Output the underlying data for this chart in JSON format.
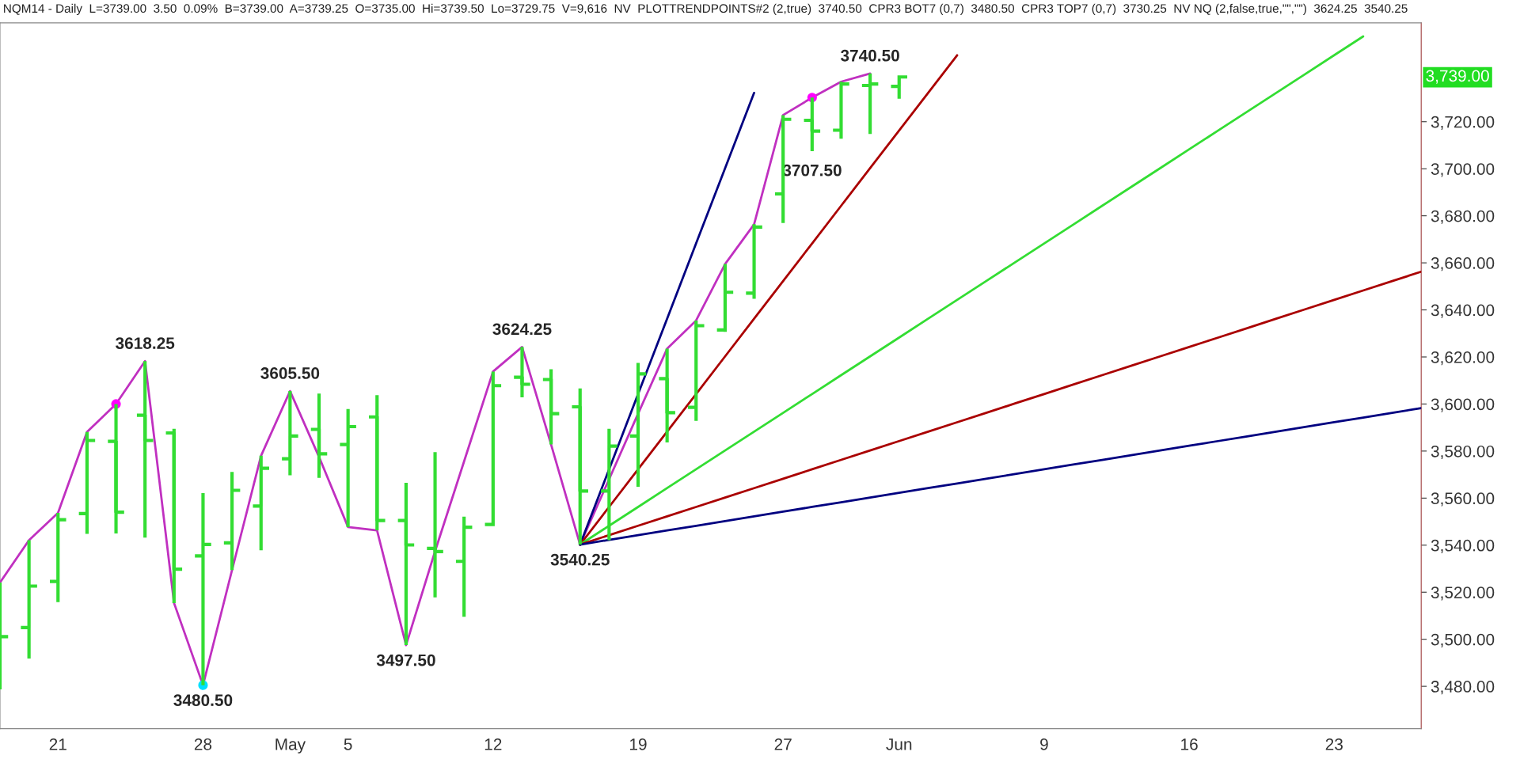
{
  "chart_data": {
    "type": "candlestick",
    "annotations": [
      "NQM14 - Daily  L=3739.00  3.50  0.09%  B=3739.00  A=3739.25  O=3735.00  Hi=3739.50  Lo=3729.75  V=9,616  NV  PLOTTRENDPOINTS#2 (2,true)  3740.50  CPR3 BOT7 (0,7)  3480.50  CPR3 TOP7 (0,7)  3730.25  NV NQ (2,false,true,\"\",\"\")  3624.25  3540.25",
      "3707.50",
      "3,739.00"
    ],
    "categories": [
      null,
      null,
      "21",
      null,
      null,
      null,
      null,
      "28",
      null,
      null,
      "May",
      null,
      "5",
      null,
      null,
      null,
      null,
      "12",
      null,
      null,
      null,
      null,
      "19",
      null,
      null,
      null,
      null,
      "27",
      null,
      null,
      null,
      "Jun",
      null,
      null,
      null,
      null,
      "9",
      null,
      null,
      null,
      null,
      "16",
      null,
      null,
      null,
      null,
      "23",
      null,
      null,
      null
    ],
    "color": "#33dd33",
    "ohlc": [
      [
        3497.4,
        3524.1,
        3478.7,
        3501.1
      ],
      [
        3505.0,
        3542.1,
        3491.8,
        3522.6
      ],
      [
        3524.6,
        3553.7,
        3515.8,
        3550.8
      ],
      [
        3553.4,
        3588.1,
        3544.8,
        3584.5
      ],
      [
        3584.1,
        3600.0,
        3545.0,
        3554.0
      ],
      [
        3595.2,
        3618.25,
        3543.2,
        3584.5
      ],
      [
        3587.7,
        3589.5,
        3515.4,
        3529.8
      ],
      [
        3535.4,
        3562.1,
        3480.5,
        3540.3
      ],
      [
        3541.0,
        3571.1,
        3529.4,
        3563.3
      ],
      [
        3556.6,
        3578.0,
        3537.8,
        3572.7
      ],
      [
        3576.7,
        3605.5,
        3569.7,
        3586.4
      ],
      [
        3589.2,
        3604.4,
        3568.6,
        3578.8
      ],
      [
        3582.8,
        3597.9,
        3547.7,
        3590.4
      ],
      [
        3594.5,
        3603.8,
        3546.3,
        3550.5
      ],
      [
        3550.5,
        3566.5,
        3497.5,
        3540.1
      ],
      [
        3538.6,
        3579.5,
        3517.8,
        3537.3
      ],
      [
        3533.1,
        3552.1,
        3509.6,
        3547.6
      ],
      [
        3548.8,
        3613.8,
        3548.1,
        3607.8
      ],
      [
        3611.4,
        3624.25,
        3602.8,
        3608.4
      ],
      [
        3610.4,
        3614.8,
        3582.8,
        3595.9
      ],
      [
        3598.8,
        3606.6,
        3540.25,
        3563.0
      ],
      [
        3563.0,
        3589.5,
        3542.1,
        3582.1
      ],
      [
        3586.4,
        3617.5,
        3564.8,
        3612.8
      ],
      [
        3610.8,
        3623.5,
        3583.7,
        3596.3
      ],
      [
        3598.6,
        3635.5,
        3592.8,
        3633.3
      ],
      [
        3631.5,
        3659.5,
        3630.7,
        3647.5
      ],
      [
        3647.1,
        3676.4,
        3644.7,
        3675.2
      ],
      [
        3689.3,
        3722.8,
        3676.9,
        3721.0
      ],
      [
        3720.6,
        3730.25,
        3707.5,
        3716.0
      ],
      [
        3716.4,
        3737.0,
        3712.8,
        3736.0
      ],
      [
        3735.4,
        3740.5,
        3714.8,
        3736.0
      ],
      [
        3735.0,
        3739.5,
        3729.75,
        3739.0
      ],
      null,
      null,
      null,
      null,
      null,
      null,
      null,
      null,
      null,
      null,
      null,
      null,
      null,
      null,
      null,
      null,
      null,
      null
    ],
    "series": [
      {
        "type": "line",
        "color": "#c030c0",
        "values": [
          3524.1,
          3542.1,
          3553.7,
          3588.1,
          3600.0,
          3618.25,
          3515.4,
          3480.5,
          3529.4,
          3578.0,
          3605.5,
          3577.5,
          3547.7,
          3546.3,
          3497.5,
          3537.4,
          3575.6,
          3613.8,
          3624.25,
          3582.8,
          3540.25,
          3568.0,
          3595.9,
          3623.5,
          3635.5,
          3659.5,
          3676.4,
          3722.8,
          3730.25,
          3737.0,
          3740.5,
          null,
          null,
          null,
          null,
          null,
          null,
          null,
          null,
          null,
          null,
          null,
          null,
          null,
          null,
          null,
          null,
          null,
          null,
          null
        ],
        "value_labels": [
          null,
          null,
          null,
          null,
          null,
          "3618.25",
          null,
          "3480.50",
          null,
          null,
          "3605.50",
          null,
          null,
          null,
          "3497.50",
          null,
          null,
          null,
          "3624.25",
          null,
          "3540.25",
          null,
          null,
          null,
          null,
          null,
          null,
          null,
          null,
          null,
          "3740.50",
          null,
          null,
          null,
          null,
          null,
          null,
          null,
          null,
          null,
          null,
          null,
          null,
          null,
          null,
          null,
          null,
          null,
          null,
          null
        ]
      },
      {
        "type": "scatter",
        "color": "#ff00ff",
        "marker": "circle",
        "values": [
          null,
          null,
          null,
          null,
          3600.0,
          null,
          null,
          null,
          null,
          null,
          null,
          null,
          null,
          null,
          null,
          null,
          null,
          null,
          null,
          null,
          null,
          null,
          null,
          null,
          null,
          null,
          null,
          null,
          3730.25,
          null,
          null,
          null,
          null,
          null,
          null,
          null,
          null,
          null,
          null,
          null,
          null,
          null,
          null,
          null,
          null,
          null,
          null,
          null,
          null,
          null
        ]
      },
      {
        "type": "scatter",
        "color": "#00e0ff",
        "marker": "circle",
        "values": [
          null,
          null,
          null,
          null,
          null,
          null,
          null,
          3480.5,
          null,
          null,
          null,
          null,
          null,
          null,
          null,
          null,
          null,
          null,
          null,
          null,
          null,
          null,
          null,
          null,
          null,
          null,
          null,
          null,
          null,
          null,
          null,
          null,
          null,
          null,
          null,
          null,
          null,
          null,
          null,
          null,
          null,
          null,
          null,
          null,
          null,
          null,
          null,
          null,
          null,
          null
        ]
      },
      {
        "type": "line",
        "color": "#000080",
        "values": [
          null,
          null,
          null,
          null,
          null,
          null,
          null,
          null,
          null,
          null,
          null,
          null,
          null,
          null,
          null,
          null,
          null,
          null,
          null,
          null,
          3540.25,
          3572.25,
          3604.25,
          3636.25,
          3668.25,
          3700.25,
          3732.25,
          null,
          null,
          null,
          null,
          null,
          null,
          null,
          null,
          null,
          null,
          null,
          null,
          null,
          null,
          null,
          null,
          null,
          null,
          null,
          null,
          null,
          null,
          null
        ]
      },
      {
        "type": "line",
        "color": "#aa0000",
        "values": [
          null,
          null,
          null,
          null,
          null,
          null,
          null,
          null,
          null,
          null,
          null,
          null,
          null,
          null,
          null,
          null,
          null,
          null,
          null,
          null,
          3540.25,
          3556.25,
          3572.25,
          3588.25,
          3604.25,
          3620.25,
          3636.25,
          3652.25,
          3668.25,
          3684.25,
          3700.25,
          3716.25,
          3732.25,
          3748.25,
          null,
          null,
          null,
          null,
          null,
          null,
          null,
          null,
          null,
          null,
          null,
          null,
          null,
          null,
          null,
          null
        ]
      },
      {
        "type": "line",
        "color": "#33dd33",
        "values": [
          null,
          null,
          null,
          null,
          null,
          null,
          null,
          null,
          null,
          null,
          null,
          null,
          null,
          null,
          null,
          null,
          null,
          null,
          null,
          null,
          3540.25,
          3548.25,
          3556.25,
          3564.25,
          3572.25,
          3580.25,
          3588.25,
          3596.25,
          3604.25,
          3612.25,
          3620.25,
          3628.25,
          3636.25,
          3644.25,
          3652.25,
          3660.25,
          3668.25,
          3676.25,
          3684.25,
          3692.25,
          3700.25,
          3708.25,
          3716.25,
          3724.25,
          3732.25,
          3740.25,
          3748.25,
          3756.25,
          null,
          null
        ]
      },
      {
        "type": "line",
        "color": "#aa0000",
        "values": [
          null,
          null,
          null,
          null,
          null,
          null,
          null,
          null,
          null,
          null,
          null,
          null,
          null,
          null,
          null,
          null,
          null,
          null,
          null,
          null,
          3540.25,
          3544.25,
          3548.25,
          3552.25,
          3556.25,
          3560.25,
          3564.25,
          3568.25,
          3572.25,
          3576.25,
          3580.25,
          3584.25,
          3588.25,
          3592.25,
          3596.25,
          3600.25,
          3604.25,
          3608.25,
          3612.25,
          3616.25,
          3620.25,
          3624.25,
          3628.25,
          3632.25,
          3636.25,
          3640.25,
          3644.25,
          3648.25,
          3652.25,
          3656.25
        ]
      },
      {
        "type": "line",
        "color": "#000080",
        "values": [
          null,
          null,
          null,
          null,
          null,
          null,
          null,
          null,
          null,
          null,
          null,
          null,
          null,
          null,
          null,
          null,
          null,
          null,
          null,
          null,
          3540.25,
          3542.25,
          3544.25,
          3546.25,
          3548.25,
          3550.25,
          3552.25,
          3554.25,
          3556.25,
          3558.25,
          3560.25,
          3562.25,
          3564.25,
          3566.25,
          3568.25,
          3570.25,
          3572.25,
          3574.25,
          3576.25,
          3578.25,
          3580.25,
          3582.25,
          3584.25,
          3586.25,
          3588.25,
          3590.25,
          3592.25,
          3594.25,
          3596.25,
          3598.25
        ]
      }
    ],
    "ylim": [
      3462,
      3762
    ],
    "yticks": [
      {
        "value": 3480,
        "label": "3,480.00"
      },
      {
        "value": 3500,
        "label": "3,500.00"
      },
      {
        "value": 3520,
        "label": "3,520.00"
      },
      {
        "value": 3540,
        "label": "3,540.00"
      },
      {
        "value": 3560,
        "label": "3,560.00"
      },
      {
        "value": 3580,
        "label": "3,580.00"
      },
      {
        "value": 3600,
        "label": "3,600.00"
      },
      {
        "value": 3620,
        "label": "3,620.00"
      },
      {
        "value": 3640,
        "label": "3,640.00"
      },
      {
        "value": 3660,
        "label": "3,660.00"
      },
      {
        "value": 3680,
        "label": "3,680.00"
      },
      {
        "value": 3700,
        "label": "3,700.00"
      },
      {
        "value": 3720,
        "label": "3,720.00"
      }
    ],
    "grid": false,
    "legend": false,
    "line_style": "solid"
  }
}
